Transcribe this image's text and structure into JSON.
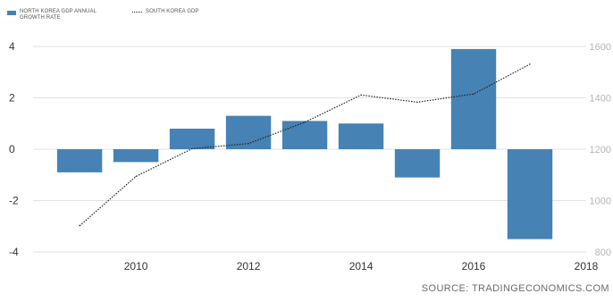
{
  "legend": {
    "bar_label": "NORTH KOREA GDP ANNUAL GROWTH RATE",
    "line_label": "SOUTH KOREA GDP"
  },
  "source": "SOURCE: TRADINGECONOMICS.COM",
  "colors": {
    "bar": "#4682b4",
    "line": "#222222",
    "grid": "#e2e2e2",
    "tick_text": "#333333",
    "right_tick_text": "#b5b5b5"
  },
  "chart_data": {
    "type": "bar",
    "title": "",
    "grid": "horizontal",
    "legend_position": "top-left",
    "x": {
      "range": [
        2008.3,
        2018
      ],
      "ticks": [
        "2010",
        "2012",
        "2014",
        "2016",
        "2018"
      ]
    },
    "y_left": {
      "range": [
        -4,
        4
      ],
      "ticks": [
        "4",
        "2",
        "0",
        "-2",
        "-4"
      ]
    },
    "y_right": {
      "range": [
        800,
        1600
      ],
      "ticks": [
        "1600",
        "1400",
        "1200",
        "1000",
        "800"
      ]
    },
    "series": [
      {
        "name": "NORTH KOREA GDP ANNUAL GROWTH RATE",
        "kind": "bar",
        "axis": "left",
        "x": [
          2009,
          2010,
          2011,
          2012,
          2013,
          2014,
          2015,
          2016,
          2017
        ],
        "values": [
          -0.9,
          -0.5,
          0.8,
          1.3,
          1.1,
          1.0,
          -1.1,
          3.9,
          -3.5
        ]
      },
      {
        "name": "SOUTH KOREA GDP",
        "kind": "line",
        "axis": "right",
        "x": [
          2009,
          2010,
          2011,
          2012,
          2013,
          2014,
          2015,
          2016,
          2017
        ],
        "values": [
          902,
          1094,
          1202,
          1222,
          1305,
          1411,
          1383,
          1415,
          1531
        ]
      }
    ]
  }
}
